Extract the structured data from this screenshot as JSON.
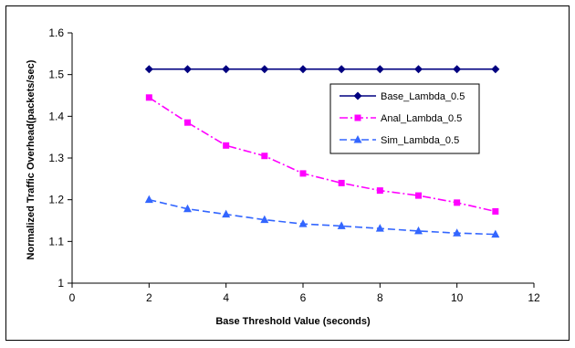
{
  "chart_data": {
    "type": "line",
    "title": "",
    "xlabel": "Base Threshold Value (seconds)",
    "ylabel": "Normalized Traffic Overhead(packets/sec)",
    "xlim": [
      0,
      12
    ],
    "ylim": [
      1,
      1.6
    ],
    "xticks": [
      0,
      2,
      4,
      6,
      8,
      10,
      12
    ],
    "yticks": [
      1,
      1.1,
      1.2,
      1.3,
      1.4,
      1.5,
      1.6
    ],
    "grid": false,
    "legend_position": "right",
    "x": [
      2,
      3,
      4,
      5,
      6,
      7,
      8,
      9,
      10,
      11
    ],
    "series": [
      {
        "name": "Base_Lambda_0.5",
        "color": "#000080",
        "marker": "diamond",
        "line": "solid",
        "values": [
          1.513,
          1.513,
          1.513,
          1.513,
          1.513,
          1.513,
          1.513,
          1.513,
          1.513,
          1.513
        ]
      },
      {
        "name": "Anal_Lambda_0.5",
        "color": "#ff00ff",
        "marker": "square",
        "line": "dashdot",
        "values": [
          1.445,
          1.385,
          1.33,
          1.305,
          1.263,
          1.24,
          1.222,
          1.21,
          1.193,
          1.172
        ]
      },
      {
        "name": "Sim_Lambda_0.5",
        "color": "#3366ff",
        "marker": "triangle",
        "line": "dashed",
        "values": [
          1.2,
          1.178,
          1.165,
          1.152,
          1.142,
          1.137,
          1.131,
          1.125,
          1.12,
          1.117
        ]
      }
    ]
  }
}
